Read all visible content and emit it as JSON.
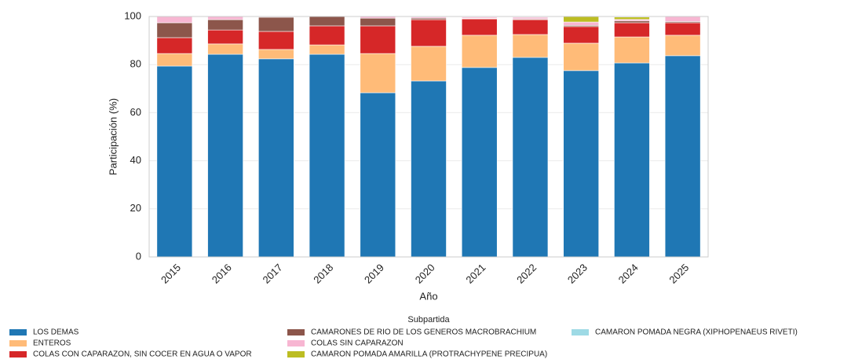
{
  "chart_data": {
    "type": "stacked_bar",
    "x_label": "Año",
    "y_label": "Participación (%)",
    "legend_title": "Subpartida",
    "categories": [
      "2015",
      "2016",
      "2017",
      "2018",
      "2019",
      "2020",
      "2021",
      "2022",
      "2023",
      "2024",
      "2025"
    ],
    "series": [
      {
        "name": "LOS DEMAS",
        "color": "#1f77b4",
        "values": [
          79.4,
          84.3,
          82.4,
          84.3,
          68.3,
          73.2,
          78.8,
          83.0,
          77.5,
          80.7,
          83.7
        ]
      },
      {
        "name": "ENTEROS",
        "color": "#ffbb78",
        "values": [
          5.2,
          4.3,
          3.9,
          3.9,
          16.3,
          14.4,
          13.4,
          9.5,
          11.4,
          10.8,
          8.5
        ]
      },
      {
        "name": "COLAS CON CAPARAZON, SIN COCER EN AGUA O VAPOR",
        "color": "#d62728",
        "values": [
          6.6,
          5.8,
          7.5,
          7.9,
          11.5,
          11.1,
          6.8,
          6.2,
          6.9,
          5.9,
          5.2
        ]
      },
      {
        "name": "CAMARONES DE RIO DE LOS GENEROS MACROBRACHIUM",
        "color": "#8c564b",
        "values": [
          6.2,
          4.3,
          5.9,
          3.9,
          3.2,
          0.6,
          0.2,
          0.3,
          0.5,
          0.8,
          0.5
        ]
      },
      {
        "name": "COLAS SIN CAPARAZON",
        "color": "#f7b6d2",
        "values": [
          2.6,
          1.3,
          0.3,
          0,
          0.7,
          0.5,
          0.5,
          0.7,
          1.4,
          0.6,
          2.1
        ]
      },
      {
        "name": "CAMARON POMADA AMARILLA (PROTRACHYPENE PRECIPUA)",
        "color": "#bcbd22",
        "values": [
          0,
          0,
          0,
          0,
          0,
          0,
          0,
          0,
          2.3,
          1.0,
          0
        ]
      },
      {
        "name": "CAMARON POMADA NEGRA (XIPHOPENAEUS RIVETI)",
        "color": "#9edae5",
        "values": [
          0,
          0,
          0,
          0,
          0,
          0,
          0,
          0,
          0,
          0.2,
          0
        ]
      }
    ],
    "ylim": [
      0,
      100
    ],
    "yticks": [
      0,
      20,
      40,
      60,
      80,
      100
    ],
    "grid": true
  }
}
